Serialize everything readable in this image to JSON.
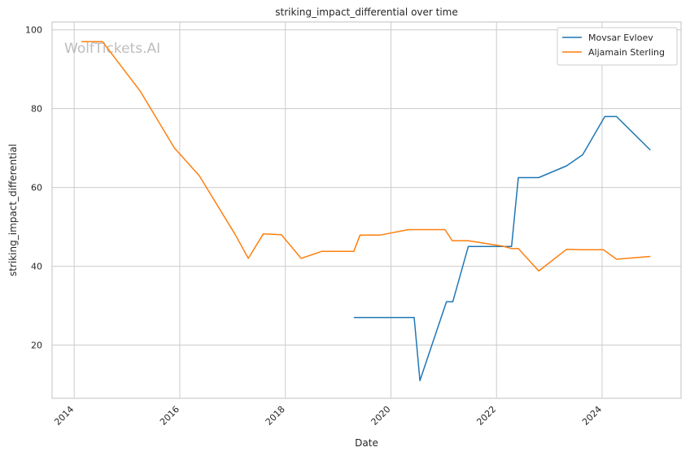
{
  "chart_data": {
    "type": "line",
    "title": "striking_impact_differential over time",
    "xlabel": "Date",
    "ylabel": "striking_impact_differential",
    "watermark": "WolfTickets.AI",
    "x_ticks": [
      "2014",
      "2016",
      "2018",
      "2020",
      "2022",
      "2024"
    ],
    "y_ticks": [
      "20",
      "40",
      "60",
      "80",
      "100"
    ],
    "xlim": [
      "2013-08-01",
      "2025-07-01"
    ],
    "ylim": [
      6.5,
      102
    ],
    "grid": true,
    "legend_position": "top-right",
    "series": [
      {
        "name": "Movsar Evloev",
        "color": "#1f77b4",
        "x": [
          "2019-04-20",
          "2020-06-10",
          "2020-07-20",
          "2021-01-20",
          "2021-03-05",
          "2021-06-20",
          "2022-04-15",
          "2022-06-01",
          "2022-10-20",
          "2023-05-01",
          "2023-08-20",
          "2024-01-20",
          "2024-04-10",
          "2024-12-01"
        ],
        "y": [
          27,
          27,
          11,
          31,
          31,
          45,
          45,
          62.5,
          62.5,
          65.5,
          68.3,
          78,
          78,
          69.5
        ]
      },
      {
        "name": "Aljamain Sterling",
        "color": "#ff7f0e",
        "x": [
          "2014-02-20",
          "2014-07-15",
          "2015-04-01",
          "2015-11-25",
          "2016-05-15",
          "2017-01-20",
          "2017-04-20",
          "2017-08-01",
          "2017-12-05",
          "2018-04-20",
          "2018-09-10",
          "2019-04-20",
          "2019-06-01",
          "2019-10-15",
          "2020-05-01",
          "2021-01-10",
          "2021-03-01",
          "2021-06-20",
          "2022-02-15",
          "2022-04-15",
          "2022-06-01",
          "2022-10-20",
          "2023-05-01",
          "2023-08-20",
          "2024-01-10",
          "2024-04-10",
          "2024-12-01"
        ],
        "y": [
          97,
          97,
          84.5,
          70,
          63,
          48,
          42,
          48.2,
          48,
          42,
          43.8,
          43.8,
          47.9,
          47.9,
          49.3,
          49.3,
          46.5,
          46.5,
          45.1,
          44.5,
          44.5,
          38.8,
          44.3,
          44.2,
          44.2,
          41.8,
          42.5
        ]
      }
    ]
  }
}
